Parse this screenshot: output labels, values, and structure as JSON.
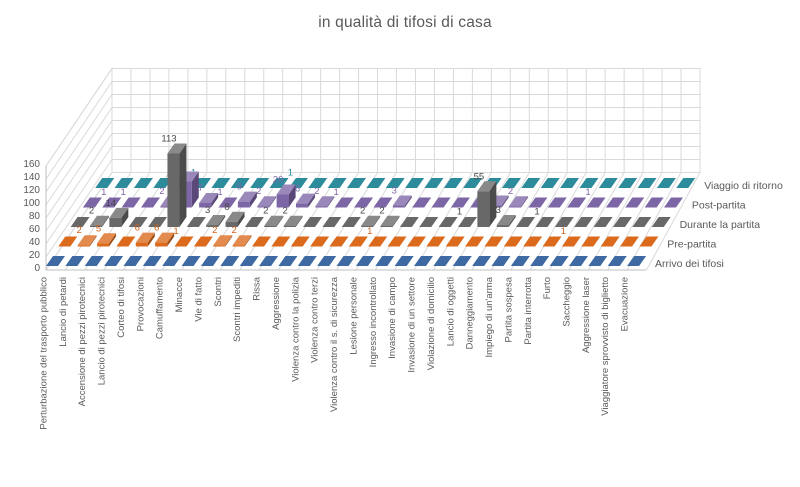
{
  "title": "in qualità di tifosi di casa",
  "chart_data": {
    "type": "bar",
    "variant": "3d-clustered",
    "title": "in qualità di tifosi di casa",
    "grid": true,
    "value_axis": {
      "min": 0,
      "max": 160,
      "step": 20,
      "tick_labels": [
        "0",
        "20",
        "40",
        "60",
        "80",
        "100",
        "120",
        "140",
        "160"
      ]
    },
    "categories": [
      "Perturbazione del trasporto pubblico",
      "Lancio di petardi",
      "Accensione di pezzi pirotecnici",
      "Lancio di pezzi pirotecnici",
      "Corteo di tifosi",
      "Provocazioni",
      "Camuffamento",
      "Minacce",
      "Vie di fatto",
      "Scontri",
      "Scontri impediti",
      "Rissa",
      "Aggressione",
      "Violenza contro la polizia",
      "Violenza contro terzi",
      "Violenza contro il s. di sicurezza",
      "Lesione personale",
      "Ingresso incontrollato",
      "Invasione di campo",
      "Invasione di un settore",
      "Violazione di domicilio",
      "Lancio di oggetti",
      "Danneggiamento",
      "Impiego di un'arma",
      "Partita sospesa",
      "Partita interrotta",
      "Furto",
      "Saccheggio",
      "Aggressione laser",
      "Viaggiatore sprovvisto di biglietto",
      "Evacuazione"
    ],
    "series": [
      {
        "name": "Arrivo dei tifosi",
        "color": "#3E69A2",
        "label_color": "#3E69A2",
        "values": [
          0,
          0,
          0,
          0,
          0,
          0,
          0,
          0,
          0,
          0,
          0,
          0,
          0,
          0,
          0,
          0,
          0,
          0,
          0,
          0,
          0,
          0,
          0,
          0,
          0,
          0,
          0,
          0,
          0,
          0,
          0
        ]
      },
      {
        "name": "Pre-partita",
        "color": "#DB6A1C",
        "label_color": "#CE6218",
        "values": [
          0,
          2,
          5,
          0,
          6,
          6,
          1,
          0,
          2,
          2,
          0,
          0,
          0,
          0,
          0,
          0,
          1,
          0,
          0,
          0,
          0,
          0,
          0,
          0,
          0,
          0,
          1,
          0,
          0,
          0,
          0
        ]
      },
      {
        "name": "Durante la partita",
        "color": "#686868",
        "label_color": "#454545",
        "values": [
          0,
          2,
          14,
          0,
          0,
          113,
          0,
          3,
          8,
          0,
          2,
          2,
          0,
          0,
          0,
          2,
          2,
          0,
          0,
          0,
          1,
          55,
          3,
          0,
          1,
          0,
          0,
          0,
          0,
          0,
          0
        ]
      },
      {
        "name": "Post-partita",
        "color": "#7D66A6",
        "label_color": "#7D66A6",
        "values": [
          0,
          1,
          1,
          0,
          2,
          40,
          7,
          1,
          9,
          2,
          20,
          6,
          2,
          1,
          0,
          0,
          3,
          0,
          0,
          0,
          0,
          3,
          2,
          0,
          0,
          0,
          1,
          0,
          0,
          0,
          0
        ]
      },
      {
        "name": "Viaggio di ritorno",
        "color": "#2D8C9C",
        "label_color": "#2D8C9C",
        "values": [
          0,
          0,
          0,
          0,
          0,
          1,
          0,
          0,
          0,
          0,
          1,
          0,
          0,
          0,
          0,
          0,
          0,
          0,
          0,
          0,
          0,
          0,
          0,
          0,
          0,
          0,
          0,
          0,
          0,
          0,
          0
        ]
      }
    ]
  }
}
